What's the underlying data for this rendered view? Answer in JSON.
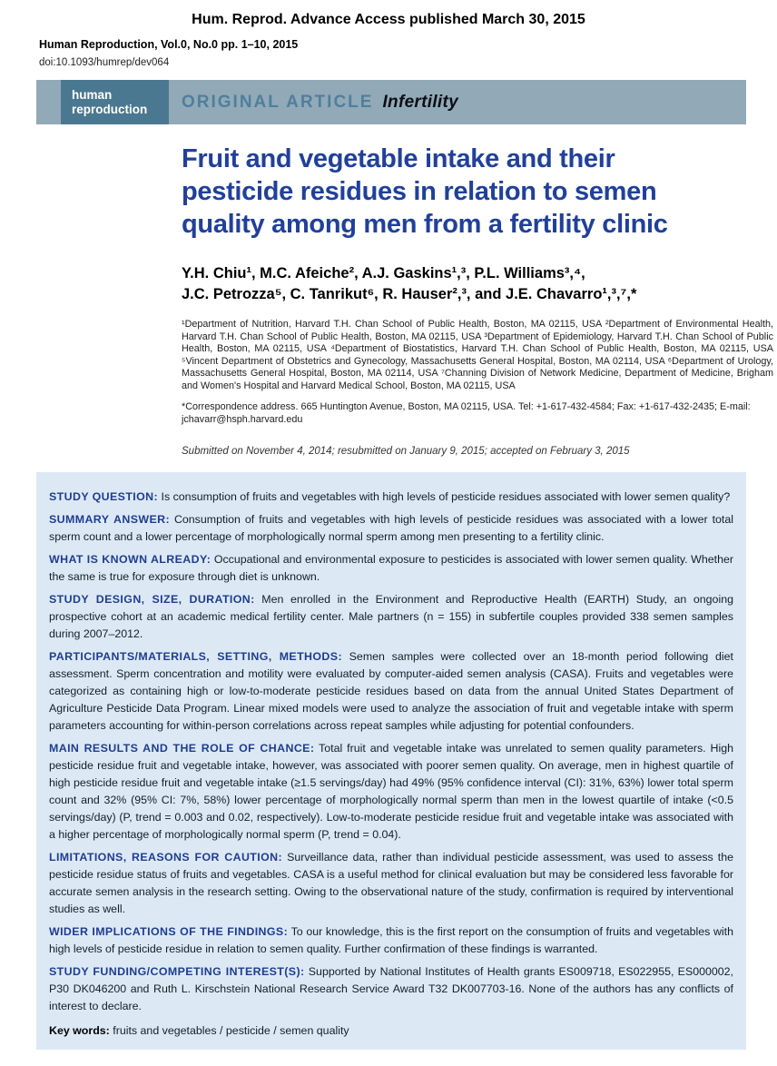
{
  "masthead": {
    "advance_access": "Hum. Reprod. Advance Access published March 30, 2015",
    "journal_line": "Human Reproduction, Vol.0, No.0 pp. 1–10, 2015",
    "doi": "doi:10.1093/humrep/dev064"
  },
  "banner": {
    "logo_text": "human reproduction",
    "category": "ORIGINAL ARTICLE",
    "topic": "Infertility"
  },
  "article": {
    "title_lines": [
      "Fruit and vegetable intake and their",
      "pesticide residues in relation to semen",
      "quality among men from a fertility clinic"
    ],
    "authors_line1": "Y.H. Chiu¹, M.C. Afeiche², A.J. Gaskins¹,³, P.L. Williams³,⁴,",
    "authors_line2": "J.C. Petrozza⁵, C. Tanrikut⁶, R. Hauser²,³, and J.E. Chavarro¹,³,⁷,*",
    "affiliations": "¹Department of Nutrition, Harvard T.H. Chan School of Public Health, Boston, MA 02115, USA ²Department of Environmental Health, Harvard T.H. Chan School of Public Health, Boston, MA 02115, USA ³Department of Epidemiology, Harvard T.H. Chan School of Public Health, Boston, MA 02115, USA ⁴Department of Biostatistics, Harvard T.H. Chan School of Public Health, Boston, MA 02115, USA ⁵Vincent Department of Obstetrics and Gynecology, Massachusetts General Hospital, Boston, MA 02114, USA ⁶Department of Urology, Massachusetts General Hospital, Boston, MA 02114, USA ⁷Channing Division of Network Medicine, Department of Medicine, Brigham and Women's Hospital and Harvard Medical School, Boston, MA 02115, USA",
    "correspondence": "*Correspondence address. 665 Huntington Avenue, Boston, MA 02115, USA. Tel: +1-617-432-4584; Fax: +1-617-432-2435; E-mail: jchavarr@hsph.harvard.edu",
    "submitted": "Submitted on November 4, 2014; resubmitted on January 9, 2015; accepted on February 3, 2015"
  },
  "abstract": {
    "sections": [
      {
        "label": "STUDY QUESTION:",
        "text": "Is consumption of fruits and vegetables with high levels of pesticide residues associated with lower semen quality?"
      },
      {
        "label": "SUMMARY ANSWER:",
        "text": "Consumption of fruits and vegetables with high levels of pesticide residues was associated with a lower total sperm count and a lower percentage of morphologically normal sperm among men presenting to a fertility clinic."
      },
      {
        "label": "WHAT IS KNOWN ALREADY:",
        "text": "Occupational and environmental exposure to pesticides is associated with lower semen quality. Whether the same is true for exposure through diet is unknown."
      },
      {
        "label": "STUDY DESIGN, SIZE, DURATION:",
        "text": "Men enrolled in the Environment and Reproductive Health (EARTH) Study, an ongoing prospective cohort at an academic medical fertility center. Male partners (n = 155) in subfertile couples provided 338 semen samples during 2007–2012."
      },
      {
        "label": "PARTICIPANTS/MATERIALS, SETTING, METHODS:",
        "text": "Semen samples were collected over an 18-month period following diet assessment. Sperm concentration and motility were evaluated by computer-aided semen analysis (CASA). Fruits and vegetables were categorized as containing high or low-to-moderate pesticide residues based on data from the annual United States Department of Agriculture Pesticide Data Program. Linear mixed models were used to analyze the association of fruit and vegetable intake with sperm parameters accounting for within-person correlations across repeat samples while adjusting for potential confounders."
      },
      {
        "label": "MAIN RESULTS AND THE ROLE OF CHANCE:",
        "text": "Total fruit and vegetable intake was unrelated to semen quality parameters. High pesticide residue fruit and vegetable intake, however, was associated with poorer semen quality. On average, men in highest quartile of high pesticide residue fruit and vegetable intake (≥1.5 servings/day) had 49% (95% confidence interval (CI): 31%, 63%) lower total sperm count and 32% (95% CI: 7%, 58%) lower percentage of morphologically normal sperm than men in the lowest quartile of intake (<0.5 servings/day) (P, trend = 0.003 and 0.02, respectively). Low-to-moderate pesticide residue fruit and vegetable intake was associated with a higher percentage of morphologically normal sperm (P, trend = 0.04)."
      },
      {
        "label": "LIMITATIONS, REASONS FOR CAUTION:",
        "text": "Surveillance data, rather than individual pesticide assessment, was used to assess the pesticide residue status of fruits and vegetables. CASA is a useful method for clinical evaluation but may be considered less favorable for accurate semen analysis in the research setting. Owing to the observational nature of the study, confirmation is required by interventional studies as well."
      },
      {
        "label": "WIDER IMPLICATIONS OF THE FINDINGS:",
        "text": "To our knowledge, this is the first report on the consumption of fruits and vegetables with high levels of pesticide residue in relation to semen quality. Further confirmation of these findings is warranted."
      },
      {
        "label": "STUDY FUNDING/COMPETING INTEREST(S):",
        "text": "Supported by National Institutes of Health grants ES009718, ES022955, ES000002, P30 DK046200 and Ruth L. Kirschstein National Research Service Award T32 DK007703-16. None of the authors has any conflicts of interest to declare."
      }
    ],
    "keywords_label": "Key words:",
    "keywords": "fruits and vegetables / pesticide / semen quality"
  }
}
